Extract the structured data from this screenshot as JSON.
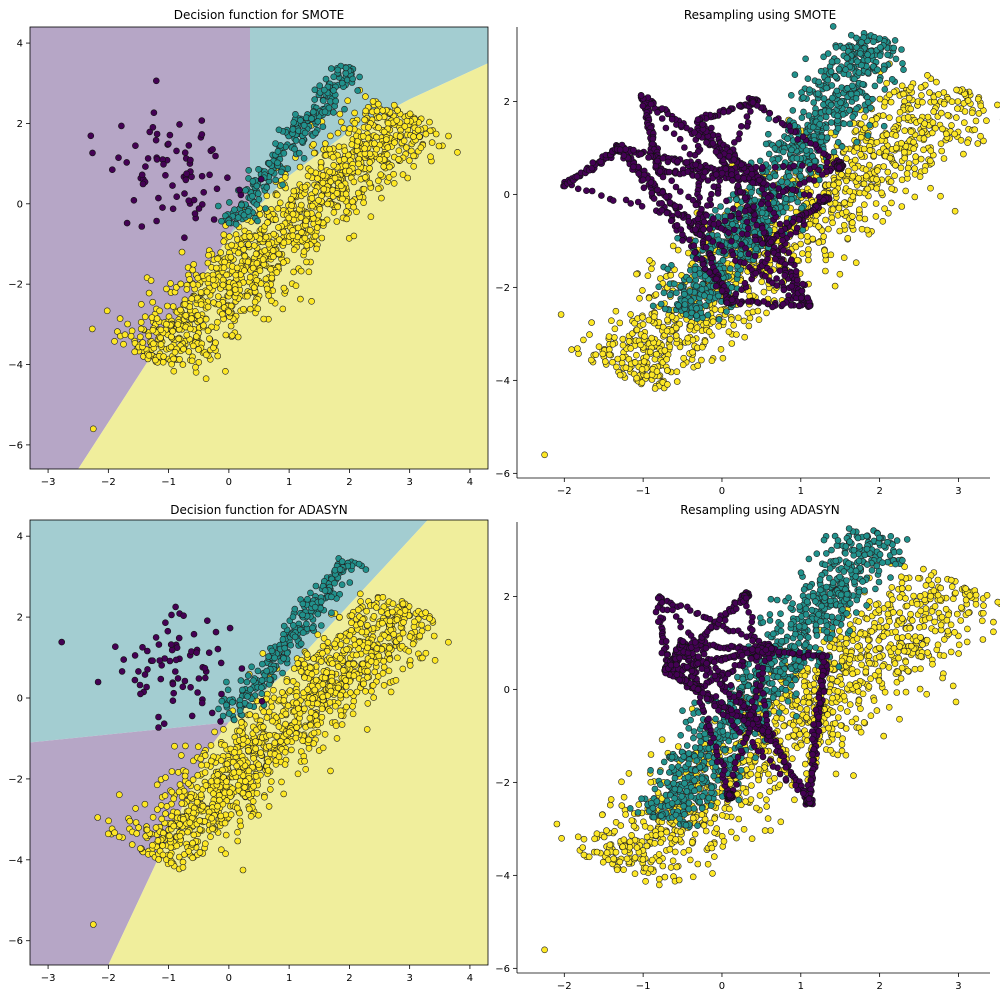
{
  "colors": {
    "class0": "#440154",
    "class1": "#21918c",
    "class2": "#fde725",
    "region0": "#b6a6c6",
    "region1": "#a3cdd1",
    "region2": "#f0ee9c"
  },
  "chart_data": [
    {
      "id": "smote_decision",
      "type": "scatter",
      "title": "Decision function for SMOTE",
      "xlim": [
        -3.3,
        4.3
      ],
      "ylim": [
        -6.6,
        4.4
      ],
      "xticks": [
        -3,
        -2,
        -1,
        0,
        1,
        2,
        3,
        4
      ],
      "yticks": [
        -6,
        -4,
        -2,
        0,
        2,
        4
      ],
      "regions": [
        {
          "class": 0,
          "polygon": [
            [
              -3.3,
              4.4
            ],
            [
              0.35,
              4.4
            ],
            [
              0.35,
              0.0
            ],
            [
              0.0,
              -0.8
            ],
            [
              -2.5,
              -6.6
            ],
            [
              -3.3,
              -6.6
            ]
          ]
        },
        {
          "class": 1,
          "polygon": [
            [
              0.35,
              4.4
            ],
            [
              4.3,
              4.4
            ],
            [
              4.3,
              3.5
            ],
            [
              3.0,
              2.6
            ],
            [
              2.0,
              1.8
            ],
            [
              1.0,
              0.7
            ],
            [
              0.0,
              -0.8
            ],
            [
              0.35,
              0.0
            ]
          ]
        },
        {
          "class": 2,
          "polygon": [
            [
              -2.5,
              -6.6
            ],
            [
              0.0,
              -0.8
            ],
            [
              1.0,
              0.7
            ],
            [
              2.0,
              1.8
            ],
            [
              3.0,
              2.6
            ],
            [
              4.3,
              3.5
            ],
            [
              4.3,
              -6.6
            ]
          ]
        }
      ],
      "clusters": {
        "class0": {
          "center": [
            -0.9,
            0.8
          ],
          "count": 75,
          "spread": [
            0.55,
            0.75
          ]
        },
        "class1": {
          "from": [
            0.0,
            -0.5
          ],
          "to": [
            2.0,
            3.4
          ],
          "count": 260,
          "width": 0.14
        },
        "class2": {
          "from": [
            -1.3,
            -3.9
          ],
          "to": [
            3.0,
            2.3
          ],
          "count": 1200,
          "width": 0.42
        },
        "outlier": [
          -2.25,
          -5.6
        ]
      }
    },
    {
      "id": "smote_resampling",
      "type": "scatter",
      "title": "Resampling using SMOTE",
      "xlim": [
        -2.6,
        3.4
      ],
      "ylim": [
        -6.1,
        3.6
      ],
      "xticks": [
        -2,
        -1,
        0,
        1,
        2,
        3
      ],
      "yticks": [
        -6,
        -4,
        -2,
        0,
        2
      ],
      "clusters": {
        "class0_hubs": [
          [
            -2.0,
            0.2
          ],
          [
            -1.3,
            1.0
          ],
          [
            -1.0,
            2.1
          ],
          [
            -0.3,
            1.6
          ],
          [
            0.4,
            2.0
          ],
          [
            -0.8,
            0.5
          ],
          [
            -0.3,
            -0.8
          ],
          [
            0.5,
            0.3
          ],
          [
            0.1,
            -2.3
          ],
          [
            0.6,
            -1.0
          ],
          [
            1.3,
            -0.1
          ],
          [
            1.1,
            -2.4
          ],
          [
            1.5,
            0.6
          ]
        ],
        "class1": {
          "from": [
            -0.5,
            -2.6
          ],
          "to": [
            2.0,
            3.4
          ],
          "count": 900,
          "width": 0.22
        },
        "class2": {
          "from": [
            -1.3,
            -3.9
          ],
          "to": [
            3.0,
            2.3
          ],
          "count": 1200,
          "width": 0.42
        },
        "outlier": [
          -2.25,
          -5.6
        ]
      }
    },
    {
      "id": "adasyn_decision",
      "type": "scatter",
      "title": "Decision function for ADASYN",
      "xlim": [
        -3.3,
        4.3
      ],
      "ylim": [
        -6.6,
        4.4
      ],
      "xticks": [
        -3,
        -2,
        -1,
        0,
        1,
        2,
        3,
        4
      ],
      "yticks": [
        -6,
        -4,
        -2,
        0,
        2,
        4
      ],
      "regions": [
        {
          "class": 1,
          "polygon": [
            [
              -3.3,
              4.4
            ],
            [
              3.3,
              4.4
            ],
            [
              1.0,
              0.7
            ],
            [
              0.0,
              -0.6
            ],
            [
              -3.3,
              -1.1
            ]
          ]
        },
        {
          "class": 0,
          "polygon": [
            [
              -3.3,
              -1.1
            ],
            [
              0.0,
              -0.6
            ],
            [
              -0.3,
              -1.2
            ],
            [
              -2.0,
              -6.6
            ],
            [
              -3.3,
              -6.6
            ]
          ]
        },
        {
          "class": 2,
          "polygon": [
            [
              -2.0,
              -6.6
            ],
            [
              -0.3,
              -1.2
            ],
            [
              0.0,
              -0.6
            ],
            [
              1.0,
              0.7
            ],
            [
              3.3,
              4.4
            ],
            [
              4.3,
              4.4
            ],
            [
              4.3,
              -6.6
            ]
          ]
        }
      ],
      "clusters": {
        "class0": {
          "center": [
            -0.9,
            0.8
          ],
          "count": 75,
          "spread": [
            0.55,
            0.75
          ]
        },
        "class1": {
          "from": [
            0.0,
            -0.5
          ],
          "to": [
            2.0,
            3.4
          ],
          "count": 260,
          "width": 0.14
        },
        "class2": {
          "from": [
            -1.3,
            -3.9
          ],
          "to": [
            3.0,
            2.3
          ],
          "count": 1200,
          "width": 0.42
        },
        "outlier": [
          -2.25,
          -5.6
        ]
      }
    },
    {
      "id": "adasyn_resampling",
      "type": "scatter",
      "title": "Resampling using ADASYN",
      "xlim": [
        -2.6,
        3.4
      ],
      "ylim": [
        -6.1,
        3.6
      ],
      "xticks": [
        -2,
        -1,
        0,
        1,
        2,
        3
      ],
      "yticks": [
        -6,
        -4,
        -2,
        0,
        2
      ],
      "clusters": {
        "class0_hubs": [
          [
            -0.8,
            2.0
          ],
          [
            0.3,
            2.0
          ],
          [
            -0.5,
            1.0
          ],
          [
            0.6,
            0.9
          ],
          [
            -0.3,
            0.0
          ],
          [
            0.1,
            -2.3
          ],
          [
            0.6,
            -1.0
          ],
          [
            1.3,
            0.7
          ],
          [
            1.1,
            -2.4
          ],
          [
            -0.7,
            0.4
          ]
        ],
        "class1": {
          "from": [
            -0.8,
            -2.8
          ],
          "to": [
            2.0,
            3.4
          ],
          "count": 900,
          "width": 0.24
        },
        "class2": {
          "from": [
            -1.3,
            -3.9
          ],
          "to": [
            3.0,
            2.3
          ],
          "count": 1200,
          "width": 0.42
        },
        "outlier": [
          -2.25,
          -5.6
        ]
      }
    }
  ]
}
